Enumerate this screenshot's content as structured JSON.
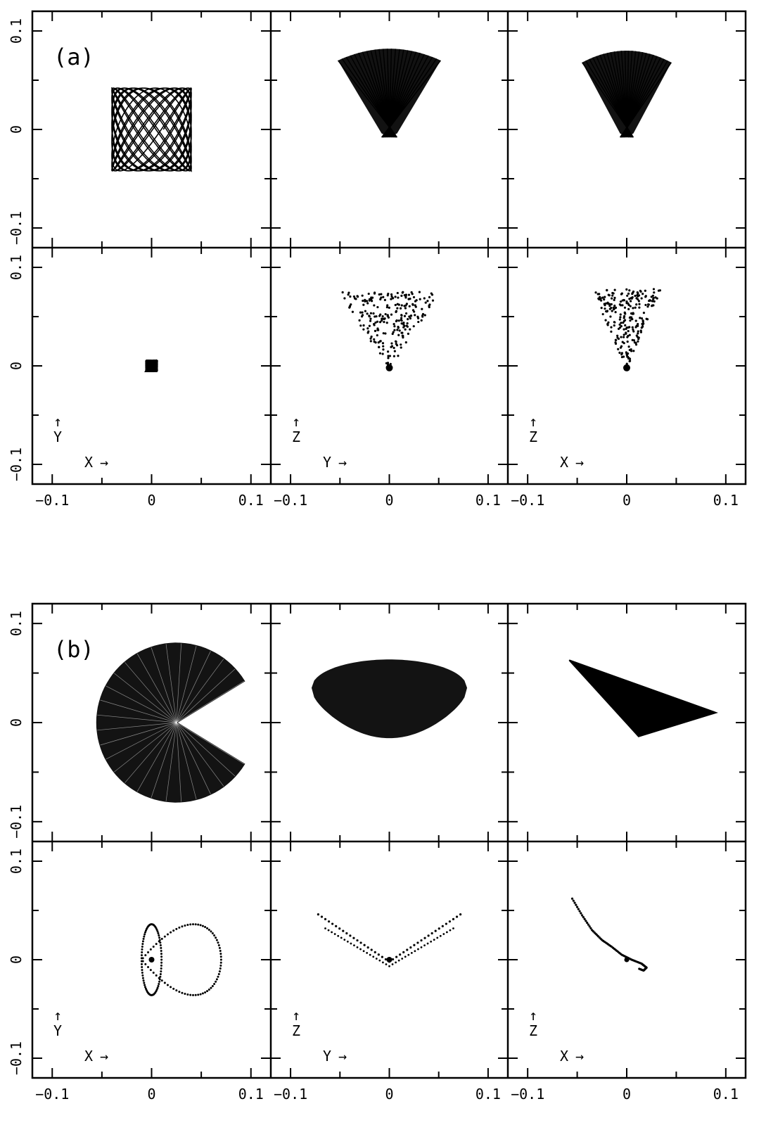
{
  "chart_data": {
    "type": "scatter",
    "figures": [
      {
        "label": "(a)",
        "panels": [
          {
            "row": "top",
            "col": 0,
            "xaxis": "X",
            "yaxis": "Y",
            "style": "orbit",
            "shape": "lissajous",
            "xlim": [
              -0.12,
              0.12
            ],
            "ylim": [
              -0.12,
              0.12
            ]
          },
          {
            "row": "top",
            "col": 1,
            "xaxis": "Y",
            "yaxis": "Z",
            "style": "orbit",
            "shape": "fan",
            "params": {
              "halfWidth": 0.052,
              "topY": 0.07,
              "bulge": 0.012,
              "bottomY": -0.008
            },
            "xlim": [
              -0.12,
              0.12
            ],
            "ylim": [
              -0.12,
              0.12
            ]
          },
          {
            "row": "top",
            "col": 2,
            "xaxis": "X",
            "yaxis": "Z",
            "style": "orbit",
            "shape": "fan",
            "params": {
              "halfWidth": 0.045,
              "topY": 0.068,
              "bulge": 0.012,
              "bottomY": -0.008
            },
            "xlim": [
              -0.12,
              0.12
            ],
            "ylim": [
              -0.12,
              0.12
            ]
          },
          {
            "row": "bottom",
            "col": 0,
            "xaxis": "X",
            "yaxis": "Y",
            "style": "dots",
            "shape": "blob",
            "xlim": [
              -0.12,
              0.12
            ],
            "ylim": [
              -0.12,
              0.12
            ],
            "arrow_up": "↑",
            "ylabel": "Y",
            "xlabel": "X",
            "arrow_right": "→"
          },
          {
            "row": "bottom",
            "col": 1,
            "xaxis": "Y",
            "yaxis": "Z",
            "style": "dots",
            "shape": "fanDots",
            "params": {
              "halfWidth": 0.052,
              "topY": 0.075,
              "bottomY": -0.004
            },
            "xlim": [
              -0.12,
              0.12
            ],
            "ylim": [
              -0.12,
              0.12
            ],
            "arrow_up": "↑",
            "ylabel": "Z",
            "xlabel": "Y",
            "arrow_right": "→"
          },
          {
            "row": "bottom",
            "col": 2,
            "xaxis": "X",
            "yaxis": "Z",
            "style": "dots",
            "shape": "fanDots",
            "params": {
              "halfWidth": 0.035,
              "topY": 0.078,
              "bottomY": -0.004
            },
            "xlim": [
              -0.12,
              0.12
            ],
            "ylim": [
              -0.12,
              0.12
            ],
            "arrow_up": "↑",
            "ylabel": "Z",
            "xlabel": "X",
            "arrow_right": "→"
          }
        ]
      },
      {
        "label": "(b)",
        "panels": [
          {
            "row": "top",
            "col": 0,
            "xaxis": "X",
            "yaxis": "Y",
            "style": "orbit",
            "shape": "pacman",
            "params": {
              "cx": 0.025,
              "cy": 0,
              "r": 0.08
            },
            "xlim": [
              -0.12,
              0.12
            ],
            "ylim": [
              -0.12,
              0.12
            ]
          },
          {
            "row": "top",
            "col": 1,
            "xaxis": "Y",
            "yaxis": "Z",
            "style": "orbit",
            "shape": "lens",
            "xlim": [
              -0.12,
              0.12
            ],
            "ylim": [
              -0.12,
              0.12
            ]
          },
          {
            "row": "top",
            "col": 2,
            "xaxis": "X",
            "yaxis": "Z",
            "style": "orbit",
            "shape": "triangle",
            "polygon": [
              [
                -0.058,
                0.063
              ],
              [
                0.09,
                0.01
              ],
              [
                0.012,
                -0.014
              ]
            ],
            "xlim": [
              -0.12,
              0.12
            ],
            "ylim": [
              -0.12,
              0.12
            ]
          },
          {
            "row": "bottom",
            "col": 0,
            "xaxis": "X",
            "yaxis": "Y",
            "style": "dots",
            "shape": "figure8",
            "xlim": [
              -0.12,
              0.12
            ],
            "ylim": [
              -0.12,
              0.12
            ],
            "arrow_up": "↑",
            "ylabel": "Y",
            "xlabel": "X",
            "arrow_right": "→"
          },
          {
            "row": "bottom",
            "col": 1,
            "xaxis": "Y",
            "yaxis": "Z",
            "style": "dots",
            "shape": "vshape",
            "xlim": [
              -0.12,
              0.12
            ],
            "ylim": [
              -0.12,
              0.12
            ],
            "arrow_up": "↑",
            "ylabel": "Z",
            "xlabel": "Y",
            "arrow_right": "→"
          },
          {
            "row": "bottom",
            "col": 2,
            "xaxis": "X",
            "yaxis": "Z",
            "style": "dots",
            "shape": "curve",
            "points": [
              [
                -0.055,
                0.062
              ],
              [
                -0.045,
                0.045
              ],
              [
                -0.035,
                0.03
              ],
              [
                -0.025,
                0.02
              ],
              [
                -0.015,
                0.013
              ],
              [
                -0.005,
                0.005
              ],
              [
                0.005,
                0.0
              ],
              [
                0.015,
                -0.004
              ],
              [
                0.02,
                -0.008
              ],
              [
                0.017,
                -0.011
              ],
              [
                0.012,
                -0.009
              ]
            ],
            "xlim": [
              -0.12,
              0.12
            ],
            "ylim": [
              -0.12,
              0.12
            ],
            "arrow_up": "↑",
            "ylabel": "Z",
            "xlabel": "X",
            "arrow_right": "→"
          }
        ]
      }
    ],
    "x_ticks": [
      "−0.1",
      "0",
      "0.1"
    ],
    "x_tick_values": [
      -0.1,
      0,
      0.1
    ],
    "y_ticks": [
      "−0.1",
      "0",
      "0.1"
    ],
    "y_tick_values": [
      -0.1,
      0,
      0.1
    ],
    "minor_tick_step": 0.05,
    "grid": false
  }
}
